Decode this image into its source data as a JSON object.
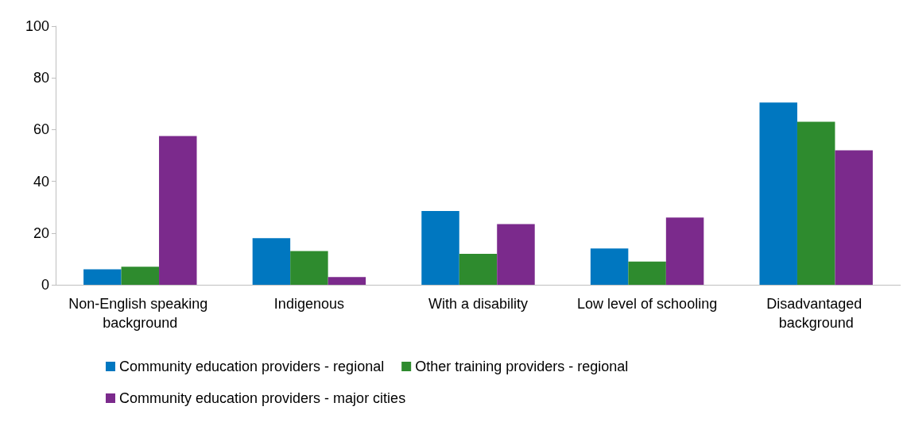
{
  "chart_data": {
    "type": "bar",
    "categories": [
      "Non-English speaking background",
      "Indigenous",
      "With a disability",
      "Low level of schooling",
      "Disadvantaged background"
    ],
    "series": [
      {
        "name": "Community education providers - regional",
        "color": "#0077c0",
        "values": [
          6,
          18,
          28.5,
          14,
          70.5
        ]
      },
      {
        "name": "Other training providers - regional",
        "color": "#2e8b2e",
        "values": [
          7,
          13,
          12,
          9,
          63
        ]
      },
      {
        "name": "Community education providers - major cities",
        "color": "#7b2a8c",
        "values": [
          57.5,
          3,
          23.5,
          26,
          52
        ]
      }
    ],
    "ylim": [
      0,
      100
    ],
    "yticks": [
      0,
      20,
      40,
      60,
      80,
      100
    ],
    "grid": false,
    "legend": "bottom"
  }
}
